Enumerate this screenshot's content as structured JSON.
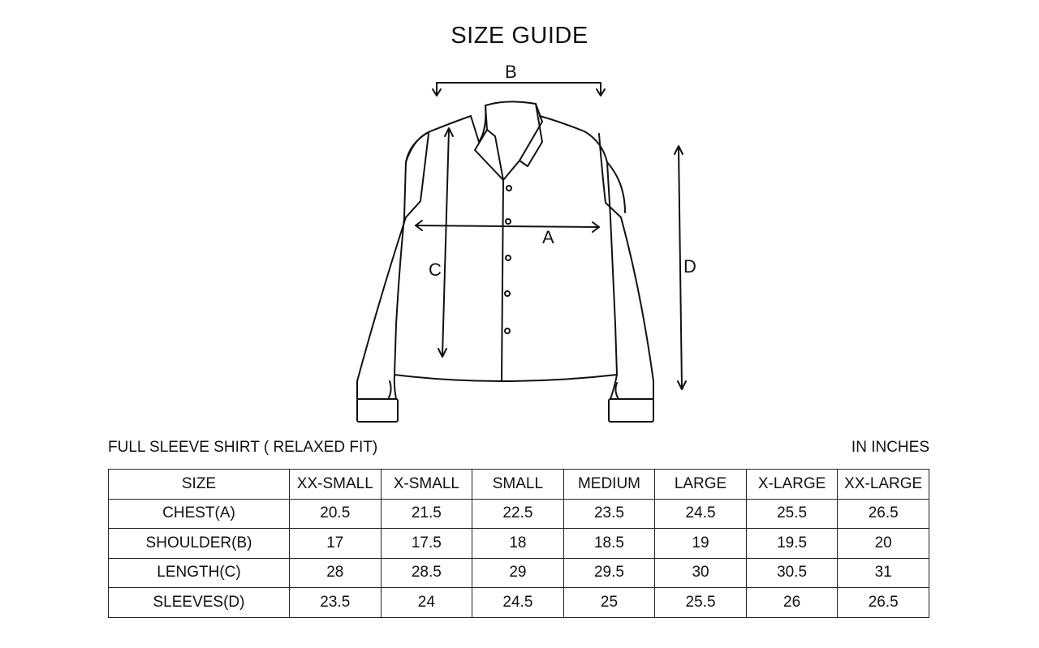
{
  "title": "SIZE GUIDE",
  "diagram_labels": {
    "a": "A",
    "b": "B",
    "c": "C",
    "d": "D"
  },
  "subtitle": "FULL SLEEVE SHIRT ( RELAXED FIT)",
  "units": "IN INCHES",
  "table": {
    "header": [
      "SIZE",
      "XX-SMALL",
      "X-SMALL",
      "SMALL",
      "MEDIUM",
      "LARGE",
      "X-LARGE",
      "XX-LARGE"
    ],
    "rows": [
      [
        "CHEST(A)",
        "20.5",
        "21.5",
        "22.5",
        "23.5",
        "24.5",
        "25.5",
        "26.5"
      ],
      [
        "SHOULDER(B)",
        "17",
        "17.5",
        "18",
        "18.5",
        "19",
        "19.5",
        "20"
      ],
      [
        "LENGTH(C)",
        "28",
        "28.5",
        "29",
        "29.5",
        "30",
        "30.5",
        "31"
      ],
      [
        "SLEEVES(D)",
        "23.5",
        "24",
        "24.5",
        "25",
        "25.5",
        "26",
        "26.5"
      ]
    ]
  }
}
